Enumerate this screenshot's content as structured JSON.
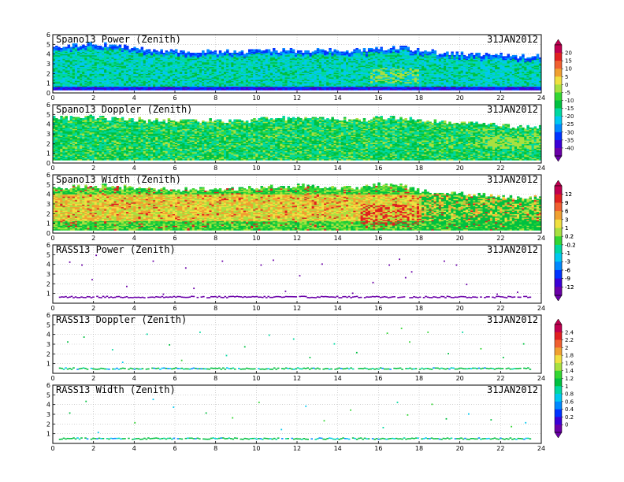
{
  "colors": {
    "palette": [
      "#6a00a8",
      "#3b00d6",
      "#0033ff",
      "#0088ff",
      "#00c8f0",
      "#00d8a0",
      "#00c040",
      "#33d633",
      "#a8e040",
      "#f0e040",
      "#f0a030",
      "#f06030",
      "#e02020",
      "#c00050"
    ],
    "grid": "#b8b8b8",
    "axes": "#000000"
  },
  "chart_data": [
    {
      "type": "heatmap",
      "title": "Spano13 Power (Zenith)",
      "date": "31JAN2012",
      "x_ticks": [
        "0",
        "2",
        "4",
        "6",
        "8",
        "10",
        "12",
        "14",
        "16",
        "18",
        "20",
        "22",
        "24"
      ],
      "y_ticks": [
        "0",
        "1",
        "2",
        "3",
        "4",
        "5",
        "6"
      ],
      "xlim": [
        0,
        24
      ],
      "ylim": [
        0,
        6
      ],
      "field": "power",
      "top_km_by_hour": [
        4.6,
        4.9,
        5.0,
        4.8,
        4.6,
        4.4,
        4.3,
        4.2,
        4.2,
        4.2,
        4.3,
        4.3,
        4.3,
        4.3,
        4.3,
        4.3,
        4.4,
        4.7,
        4.3,
        4.1,
        4.0,
        3.9,
        3.8,
        3.7,
        3.7
      ],
      "colorbar": "cb_power"
    },
    {
      "type": "heatmap",
      "title": "Spano13 Doppler (Zenith)",
      "date": "31JAN2012",
      "x_ticks": [
        "0",
        "2",
        "4",
        "6",
        "8",
        "10",
        "12",
        "14",
        "16",
        "18",
        "20",
        "22",
        "24"
      ],
      "y_ticks": [
        "0",
        "1",
        "2",
        "3",
        "4",
        "5",
        "6"
      ],
      "xlim": [
        0,
        24
      ],
      "ylim": [
        0,
        6
      ],
      "field": "doppler",
      "top_km_by_hour": [
        4.6,
        4.6,
        4.7,
        4.5,
        4.4,
        4.3,
        4.3,
        4.3,
        4.3,
        4.3,
        4.4,
        4.5,
        4.6,
        4.5,
        4.4,
        4.4,
        4.6,
        4.7,
        4.3,
        4.2,
        4.2,
        4.0,
        3.8,
        3.7,
        3.7
      ]
    },
    {
      "type": "heatmap",
      "title": "Spano13 Width (Zenith)",
      "date": "31JAN2012",
      "x_ticks": [
        "0",
        "2",
        "4",
        "6",
        "8",
        "10",
        "12",
        "14",
        "16",
        "18",
        "20",
        "22",
        "24"
      ],
      "y_ticks": [
        "0",
        "1",
        "2",
        "3",
        "4",
        "5",
        "6"
      ],
      "xlim": [
        0,
        24
      ],
      "ylim": [
        0,
        6
      ],
      "field": "width",
      "top_km_by_hour": [
        4.6,
        4.7,
        4.8,
        4.7,
        4.6,
        4.5,
        4.4,
        4.4,
        4.5,
        4.5,
        4.6,
        4.7,
        4.8,
        4.7,
        4.6,
        4.6,
        4.9,
        5.0,
        4.3,
        4.1,
        4.0,
        3.9,
        3.7,
        3.6,
        3.6
      ],
      "colorbar": "cb_width"
    },
    {
      "type": "scatter",
      "title": "RASS13 Power (Zenith)",
      "date": "31JAN2012",
      "x_ticks": [
        "0",
        "2",
        "4",
        "6",
        "8",
        "10",
        "12",
        "14",
        "16",
        "18",
        "20",
        "22",
        "24"
      ],
      "y_ticks": [
        "1",
        "2",
        "3",
        "4",
        "5",
        "6"
      ],
      "xlim": [
        0,
        24
      ],
      "ylim": [
        0,
        6
      ],
      "band_km": 0.7,
      "points": [
        [
          0.8,
          4.3
        ],
        [
          1.4,
          4.0
        ],
        [
          2.1,
          5.0
        ],
        [
          1.9,
          2.5
        ],
        [
          4.9,
          4.4
        ],
        [
          5.4,
          1.0
        ],
        [
          6.5,
          3.7
        ],
        [
          6.9,
          1.6
        ],
        [
          8.3,
          4.4
        ],
        [
          10.2,
          4.0
        ],
        [
          10.8,
          4.5
        ],
        [
          12.1,
          2.9
        ],
        [
          13.2,
          4.1
        ],
        [
          15.7,
          2.2
        ],
        [
          16.5,
          4.0
        ],
        [
          17.0,
          4.6
        ],
        [
          17.3,
          2.7
        ],
        [
          17.6,
          3.3
        ],
        [
          19.2,
          4.4
        ],
        [
          19.8,
          4.0
        ],
        [
          20.3,
          2.0
        ],
        [
          21.8,
          1.0
        ],
        [
          22.8,
          1.2
        ],
        [
          3.6,
          1.8
        ],
        [
          11.4,
          1.3
        ],
        [
          14.7,
          1.1
        ]
      ],
      "colorbar": "cb_rass_power"
    },
    {
      "type": "scatter",
      "title": "RASS13 Doppler (Zenith)",
      "date": "31JAN2012",
      "x_ticks": [
        "0",
        "2",
        "4",
        "6",
        "8",
        "10",
        "12",
        "14",
        "16",
        "18",
        "20",
        "22",
        "24"
      ],
      "y_ticks": [
        "1",
        "2",
        "3",
        "4",
        "5",
        "6"
      ],
      "xlim": [
        0,
        24
      ],
      "ylim": [
        0,
        6
      ],
      "band_km": 0.55,
      "points": [
        [
          0.7,
          3.3
        ],
        [
          1.5,
          3.8
        ],
        [
          2.9,
          2.5
        ],
        [
          4.6,
          4.1
        ],
        [
          5.7,
          3.0
        ],
        [
          7.2,
          4.3
        ],
        [
          8.5,
          1.9
        ],
        [
          9.4,
          2.8
        ],
        [
          10.6,
          4.0
        ],
        [
          11.8,
          3.6
        ],
        [
          12.6,
          1.7
        ],
        [
          13.8,
          3.1
        ],
        [
          14.9,
          2.2
        ],
        [
          16.4,
          4.2
        ],
        [
          17.1,
          4.7
        ],
        [
          17.5,
          3.3
        ],
        [
          18.4,
          4.3
        ],
        [
          19.4,
          2.1
        ],
        [
          20.1,
          4.3
        ],
        [
          21.0,
          2.6
        ],
        [
          22.1,
          1.7
        ],
        [
          23.1,
          3.1
        ],
        [
          3.4,
          1.2
        ],
        [
          6.3,
          1.4
        ]
      ],
      "colorbar": "cb_doppler"
    },
    {
      "type": "scatter",
      "title": "RASS13 Width (Zenith)",
      "date": "31JAN2012",
      "x_ticks": [
        "0",
        "2",
        "4",
        "6",
        "8",
        "10",
        "12",
        "14",
        "16",
        "18",
        "20",
        "22",
        "24"
      ],
      "y_ticks": [
        "1",
        "2",
        "3",
        "4",
        "5",
        "6"
      ],
      "xlim": [
        0,
        24
      ],
      "ylim": [
        0,
        6
      ],
      "band_km": 0.55,
      "points": [
        [
          0.8,
          3.2
        ],
        [
          1.6,
          4.4
        ],
        [
          2.2,
          1.2
        ],
        [
          4.0,
          2.2
        ],
        [
          4.9,
          4.6
        ],
        [
          5.9,
          3.8
        ],
        [
          7.5,
          3.2
        ],
        [
          8.8,
          2.7
        ],
        [
          10.1,
          4.3
        ],
        [
          11.2,
          1.5
        ],
        [
          12.4,
          3.9
        ],
        [
          13.3,
          2.4
        ],
        [
          14.6,
          3.5
        ],
        [
          16.2,
          1.7
        ],
        [
          16.9,
          4.3
        ],
        [
          17.4,
          3.0
        ],
        [
          18.6,
          4.1
        ],
        [
          19.3,
          2.6
        ],
        [
          20.4,
          3.1
        ],
        [
          21.5,
          2.5
        ],
        [
          22.5,
          1.8
        ],
        [
          23.2,
          2.2
        ]
      ]
    }
  ],
  "colorbars": {
    "cb_power": {
      "labels": [
        "20",
        "15",
        "10",
        "5",
        "0",
        "-5",
        "-10",
        "-15",
        "-20",
        "-25",
        "-30",
        "-35",
        "-40"
      ]
    },
    "cb_width": {
      "labels": [
        "12",
        "9",
        "6",
        "3",
        "1",
        "0.2",
        "-0.2",
        "-1",
        "-3",
        "-6",
        "-9",
        "-12"
      ]
    },
    "cb_rass_power": {
      "labels": [
        "12",
        "9",
        "6",
        "3",
        "1",
        "0.2",
        "-0.2",
        "-1",
        "-3",
        "-6",
        "-9",
        "-12"
      ]
    },
    "cb_doppler": {
      "labels": [
        "2.4",
        "2.2",
        "2",
        "1.8",
        "1.6",
        "1.4",
        "1.2",
        "1",
        "0.8",
        "0.6",
        "0.4",
        "0.2",
        "0"
      ]
    }
  }
}
